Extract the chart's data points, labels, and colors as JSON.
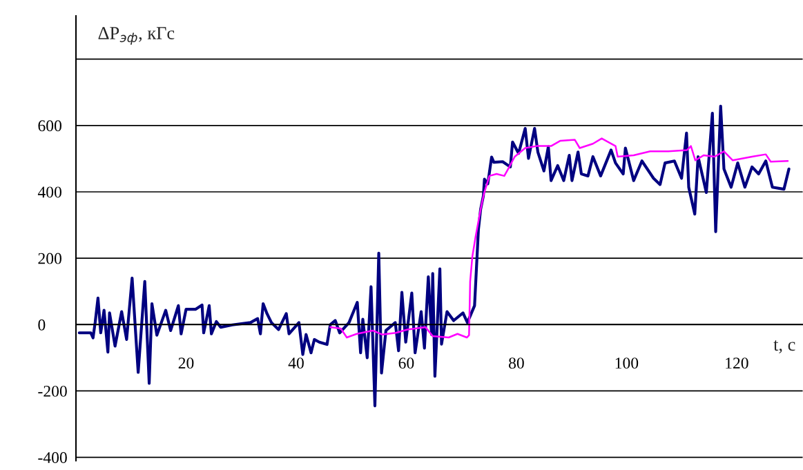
{
  "chart_data": {
    "type": "line",
    "xlabel": "t, с",
    "ylabel": "ΔP$_{эф}$, кГс",
    "xlim": [
      0,
      132
    ],
    "xticks": [
      20,
      40,
      60,
      80,
      100,
      120
    ],
    "ylim": [
      -410,
      930
    ],
    "yticks": [
      -400,
      -200,
      0,
      200,
      400,
      600,
      {
        "value": 800,
        "label": null
      }
    ],
    "grid": "y",
    "series": [
      {
        "color": "#000080",
        "x": [
          0.6,
          2.7,
          3.1,
          3.5,
          4.0,
          4.5,
          5.1,
          5.8,
          6.1,
          7.1,
          8.3,
          9.2,
          10.2,
          11.3,
          12.5,
          13.3,
          13.8,
          14.7,
          16.3,
          17.2,
          18.6,
          19.1,
          20.0,
          21.7,
          22.9,
          23.2,
          24.2,
          24.6,
          25.5,
          26.3,
          28.4,
          31.7,
          33.0,
          33.5,
          34.0,
          34.7,
          35.5,
          36.8,
          38.2,
          38.7,
          40.5,
          41.2,
          41.8,
          42.7,
          43.3,
          44.2,
          45.6,
          46.2,
          47.1,
          47.9,
          49.6,
          51.1,
          51.7,
          52.1,
          52.9,
          53.6,
          54.3,
          55.0,
          55.5,
          56.3,
          58.0,
          58.6,
          59.2,
          59.9,
          61.0,
          61.6,
          62.7,
          63.3,
          64.0,
          64.6,
          64.8,
          65.2,
          66.1,
          66.4,
          67.4,
          68.6,
          70.3,
          71.1,
          72.4,
          73.1,
          73.5,
          74.0,
          74.2,
          74.8,
          75.5,
          75.9,
          77.5,
          78.9,
          79.3,
          80.4,
          81.6,
          82.2,
          83.3,
          83.9,
          85.0,
          85.8,
          86.3,
          87.5,
          88.6,
          89.6,
          90.1,
          91.2,
          91.8,
          93.0,
          93.9,
          95.3,
          97.2,
          98.0,
          99.4,
          99.8,
          101.3,
          102.8,
          104.9,
          106.1,
          107.0,
          108.7,
          110.0,
          110.9,
          111.3,
          112.4,
          113.0,
          114.5,
          115.6,
          116.2,
          117.1,
          117.7,
          119.0,
          120.2,
          121.5,
          122.8,
          124.0,
          125.3,
          126.5,
          128.6,
          129.5
        ],
        "values": [
          -25,
          -25,
          -40,
          8,
          80,
          -25,
          43,
          -83,
          35,
          -65,
          39,
          -45,
          140,
          -144,
          130,
          -177,
          63,
          -32,
          43,
          -18,
          57,
          -28,
          46,
          46,
          59,
          -25,
          57,
          -28,
          9,
          -8,
          -1,
          6,
          18,
          -28,
          63,
          33,
          6,
          -15,
          33,
          -28,
          6,
          -90,
          -30,
          -85,
          -45,
          -53,
          -60,
          0,
          12,
          -25,
          6,
          67,
          -85,
          16,
          -100,
          114,
          -245,
          215,
          -146,
          -18,
          6,
          -79,
          97,
          -53,
          95,
          -85,
          39,
          -71,
          144,
          -30,
          154,
          -156,
          168,
          -59,
          39,
          12,
          35,
          6,
          57,
          286,
          347,
          388,
          438,
          424,
          505,
          489,
          491,
          475,
          550,
          516,
          591,
          501,
          591,
          520,
          463,
          536,
          434,
          479,
          434,
          510,
          434,
          520,
          454,
          448,
          506,
          448,
          526,
          487,
          454,
          532,
          434,
          493,
          441,
          422,
          487,
          493,
          441,
          577,
          414,
          333,
          506,
          398,
          637,
          280,
          658,
          469,
          414,
          487,
          414,
          475,
          454,
          493,
          414,
          408,
          469
        ]
      },
      {
        "color": "#ff00ff",
        "x": [
          46.2,
          48.1,
          49.2,
          51.0,
          53.9,
          55.6,
          58.1,
          60.2,
          63.5,
          64.8,
          67.7,
          69.3,
          71.0,
          71.4,
          71.6,
          72.0,
          72.6,
          73.5,
          74.1,
          75.1,
          76.4,
          77.8,
          78.5,
          79.7,
          81.6,
          83.7,
          86.3,
          88.0,
          90.6,
          91.5,
          93.9,
          95.5,
          98.0,
          98.4,
          101.3,
          104.3,
          107.6,
          111.0,
          111.7,
          112.5,
          114.0,
          116.0,
          117.7,
          119.3,
          122.8,
          125.3,
          126.2,
          129.3
        ],
        "values": [
          -8,
          -12,
          -39,
          -28,
          -18,
          -30,
          -25,
          -15,
          -8,
          -35,
          -39,
          -28,
          -39,
          -32,
          130,
          205,
          266,
          347,
          394,
          448,
          454,
          448,
          469,
          506,
          532,
          538,
          538,
          554,
          557,
          532,
          545,
          561,
          538,
          506,
          510,
          522,
          522,
          526,
          538,
          495,
          510,
          506,
          522,
          495,
          506,
          513,
          491,
          493
        ]
      }
    ]
  }
}
